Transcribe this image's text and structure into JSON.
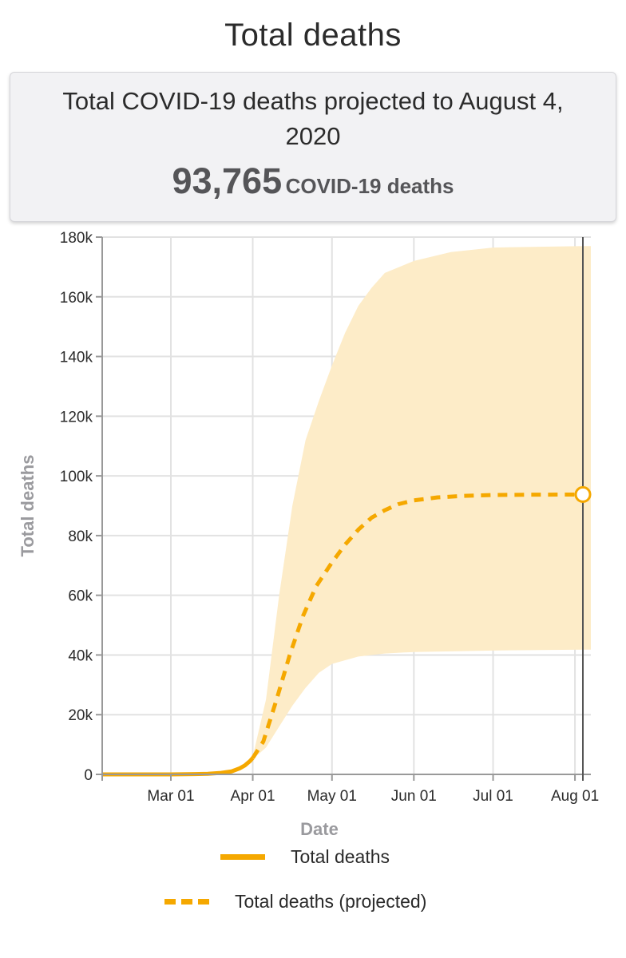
{
  "page": {
    "title": "Total deaths"
  },
  "summary": {
    "headline": "Total COVID-19 deaths projected to August 4, 2020",
    "value": "93,765",
    "unit": "COVID-19 deaths"
  },
  "colors": {
    "series": "#f5a800",
    "band": "#fdecc8",
    "grid": "#e2e2e2",
    "axis": "#999999",
    "marker_line": "#555555"
  },
  "chart_data": {
    "type": "line",
    "xlabel": "Date",
    "ylabel": "Total deaths",
    "x_domain": [
      "2020-02-04",
      "2020-08-04"
    ],
    "ylim": [
      0,
      180000
    ],
    "y_ticks": [
      0,
      20000,
      40000,
      60000,
      80000,
      100000,
      120000,
      140000,
      160000,
      180000
    ],
    "y_tick_labels": [
      "0",
      "20k",
      "40k",
      "60k",
      "80k",
      "100k",
      "120k",
      "140k",
      "160k",
      "180k"
    ],
    "x_ticks": [
      "2020-03-01",
      "2020-04-01",
      "2020-05-01",
      "2020-06-01",
      "2020-07-01",
      "2020-08-01"
    ],
    "x_tick_labels": [
      "Mar 01",
      "Apr 01",
      "May 01",
      "Jun 01",
      "Jul 01",
      "Aug 01"
    ],
    "grid": true,
    "legend_position": "bottom",
    "series": [
      {
        "name": "Total deaths",
        "style": "solid",
        "points": [
          [
            "2020-02-04",
            0
          ],
          [
            "2020-02-15",
            0
          ],
          [
            "2020-03-01",
            0
          ],
          [
            "2020-03-10",
            100
          ],
          [
            "2020-03-15",
            200
          ],
          [
            "2020-03-20",
            500
          ],
          [
            "2020-03-24",
            1000
          ],
          [
            "2020-03-27",
            2000
          ],
          [
            "2020-03-29",
            3000
          ],
          [
            "2020-03-31",
            4500
          ],
          [
            "2020-04-01",
            5500
          ]
        ]
      },
      {
        "name": "Total deaths (projected)",
        "style": "dashed",
        "points": [
          [
            "2020-04-01",
            5500
          ],
          [
            "2020-04-05",
            11000
          ],
          [
            "2020-04-10",
            25000
          ],
          [
            "2020-04-15",
            40000
          ],
          [
            "2020-04-20",
            53000
          ],
          [
            "2020-04-25",
            63000
          ],
          [
            "2020-05-01",
            71000
          ],
          [
            "2020-05-06",
            77000
          ],
          [
            "2020-05-11",
            82000
          ],
          [
            "2020-05-16",
            86000
          ],
          [
            "2020-05-21",
            88500
          ],
          [
            "2020-05-26",
            90500
          ],
          [
            "2020-06-01",
            91800
          ],
          [
            "2020-06-10",
            92800
          ],
          [
            "2020-06-20",
            93300
          ],
          [
            "2020-07-01",
            93600
          ],
          [
            "2020-07-15",
            93700
          ],
          [
            "2020-08-04",
            93765
          ]
        ]
      }
    ],
    "uncertainty_band": {
      "upper": [
        [
          "2020-04-01",
          6000
        ],
        [
          "2020-04-06",
          25000
        ],
        [
          "2020-04-11",
          60000
        ],
        [
          "2020-04-16",
          90000
        ],
        [
          "2020-04-21",
          112000
        ],
        [
          "2020-04-26",
          125000
        ],
        [
          "2020-05-01",
          137000
        ],
        [
          "2020-05-06",
          148000
        ],
        [
          "2020-05-11",
          157000
        ],
        [
          "2020-05-16",
          163000
        ],
        [
          "2020-05-21",
          168000
        ],
        [
          "2020-06-01",
          172000
        ],
        [
          "2020-06-15",
          175000
        ],
        [
          "2020-07-01",
          176500
        ],
        [
          "2020-08-04",
          177000
        ]
      ],
      "lower": [
        [
          "2020-04-01",
          5000
        ],
        [
          "2020-04-06",
          9000
        ],
        [
          "2020-04-11",
          16000
        ],
        [
          "2020-04-16",
          23000
        ],
        [
          "2020-04-21",
          29000
        ],
        [
          "2020-04-26",
          34000
        ],
        [
          "2020-05-01",
          37000
        ],
        [
          "2020-05-11",
          39500
        ],
        [
          "2020-05-21",
          40500
        ],
        [
          "2020-06-01",
          41000
        ],
        [
          "2020-07-01",
          41500
        ],
        [
          "2020-08-04",
          41800
        ]
      ]
    },
    "highlight": {
      "x": "2020-08-04",
      "y": 93765
    }
  }
}
